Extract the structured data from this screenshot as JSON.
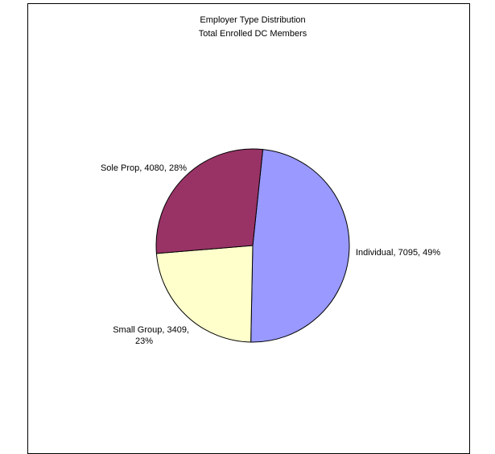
{
  "chart_data": {
    "type": "pie",
    "title": "Employer Type Distribution",
    "subtitle": "Total Enrolled DC Members",
    "slices": [
      {
        "label": "Individual",
        "value": 7095,
        "percent": "49%",
        "color": "#9999ff",
        "label_text": [
          "Individual, 7095, 49%"
        ]
      },
      {
        "label": "Small Group",
        "value": 3409,
        "percent": "23%",
        "color": "#ffffcc",
        "label_text": [
          "Small Group, 3409,",
          "23%"
        ]
      },
      {
        "label": "Sole Prop",
        "value": 4080,
        "percent": "28%",
        "color": "#993366",
        "label_text": [
          "Sole Prop, 4080, 28%"
        ]
      }
    ],
    "legend": "none"
  }
}
